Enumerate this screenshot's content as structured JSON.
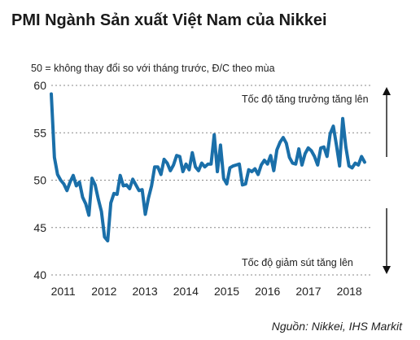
{
  "chart_data": {
    "type": "line",
    "title": "PMI Ngành Sản xuất Việt Nam của Nikkei",
    "subtitle": "50 = không thay đổi so với tháng trước, Đ/C theo mùa",
    "source": "Nguồn: Nikkei, IHS Markit",
    "xlabel": "",
    "ylabel": "",
    "ylim": [
      40,
      60
    ],
    "y_ticks": [
      "40",
      "45",
      "50",
      "55",
      "60"
    ],
    "x_ticks": [
      "2011",
      "2012",
      "2013",
      "2014",
      "2015",
      "2016",
      "2017",
      "2018"
    ],
    "x_range": [
      "2011-03",
      "2018-11"
    ],
    "grid": "horizontal dotted",
    "line_color": "#1a6fa9",
    "annotations": {
      "up": "Tốc độ tăng trưởng tăng lên",
      "down": "Tốc độ giảm sút tăng lên"
    },
    "series": [
      {
        "values": [
          59.1,
          52.4,
          50.6,
          50.0,
          49.6,
          48.9,
          49.8,
          50.5,
          49.4,
          49.8,
          48.2,
          47.5,
          46.3,
          50.2,
          49.5,
          48.0,
          46.7,
          44.0,
          43.6,
          47.6,
          48.6,
          48.5,
          50.5,
          49.4,
          49.5,
          49.1,
          50.1,
          49.5,
          48.9,
          49.0,
          46.4,
          48.1,
          49.4,
          51.4,
          51.4,
          50.6,
          52.2,
          51.8,
          51.0,
          51.6,
          52.6,
          52.5,
          50.9,
          51.7,
          51.1,
          52.9,
          51.4,
          51.0,
          51.8,
          51.4,
          51.7,
          51.7,
          54.8,
          50.9,
          53.7,
          50.2,
          49.6,
          51.3,
          51.5,
          51.6,
          51.7,
          49.5,
          49.6,
          51.1,
          50.9,
          51.2,
          50.6,
          51.6,
          52.1,
          51.7,
          52.6,
          51.0,
          53.2,
          54.0,
          54.5,
          53.9,
          52.4,
          51.8,
          51.7,
          53.3,
          51.6,
          52.8,
          53.4,
          53.1,
          52.5,
          51.6,
          53.4,
          53.5,
          52.5,
          54.9,
          55.7,
          53.7,
          51.5,
          56.5,
          53.5,
          51.5,
          51.3,
          51.8,
          51.6,
          52.5,
          51.9
        ]
      }
    ]
  }
}
